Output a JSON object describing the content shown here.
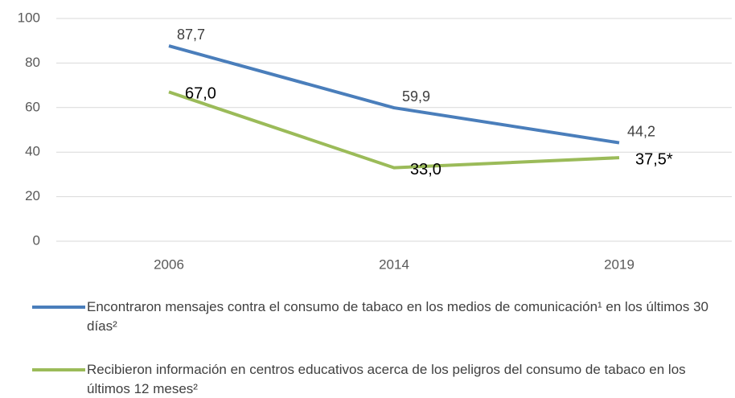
{
  "chart_data": {
    "type": "line",
    "categories": [
      "2006",
      "2014",
      "2019"
    ],
    "series": [
      {
        "name": "Encontraron mensajes contra el consumo de tabaco en los medios de comunicación¹ en los últimos 30 días²",
        "color": "#4a7ebb",
        "values": [
          87.7,
          59.9,
          44.2
        ],
        "value_labels": [
          "87,7",
          "59,9",
          "44,2"
        ]
      },
      {
        "name": "Recibieron información en centros educativos acerca de los peligros del consumo de tabaco en los últimos 12 meses²",
        "color": "#9bbb59",
        "values": [
          67.0,
          33.0,
          37.5
        ],
        "value_labels": [
          "67,0",
          "33,0",
          "37,5*"
        ]
      }
    ],
    "ylim": [
      0,
      100
    ],
    "yticks": [
      0,
      20,
      40,
      60,
      80,
      100
    ],
    "grid": true,
    "legend": "bottom"
  }
}
